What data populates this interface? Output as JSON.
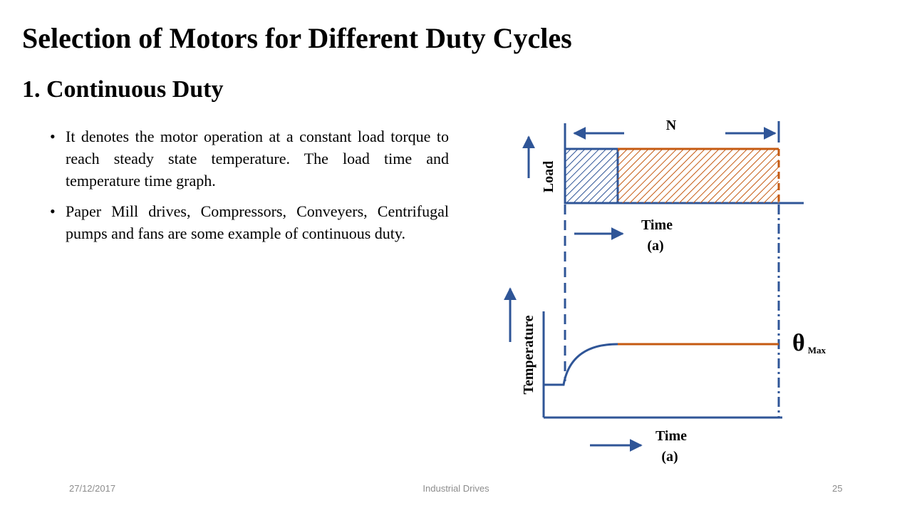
{
  "slide": {
    "title": "Selection of Motors for Different Duty Cycles",
    "subtitle": "1. Continuous Duty",
    "bullets": [
      "It denotes the motor operation at a constant load torque to reach steady state temperature. The load time and temperature time graph.",
      "Paper Mill drives, Compressors, Conveyers, Centrifugal pumps and fans are some example of continuous duty."
    ],
    "bullet_symbol": "•"
  },
  "diagram": {
    "period_label": "N",
    "load_axis_label": "Load",
    "load_time_label": "Time",
    "load_caption": "(a)",
    "temp_axis_label": "Temperature",
    "temp_time_label": "Time",
    "temp_caption": "(a)",
    "theta_symbol": "θ",
    "theta_subscript": "Max",
    "colors": {
      "axis_blue": "#2f5597",
      "load_orange": "#c55a11",
      "hatch_blue": "#2f5597"
    }
  },
  "footer": {
    "date": "27/12/2017",
    "center": "Industrial Drives",
    "page": "25"
  }
}
